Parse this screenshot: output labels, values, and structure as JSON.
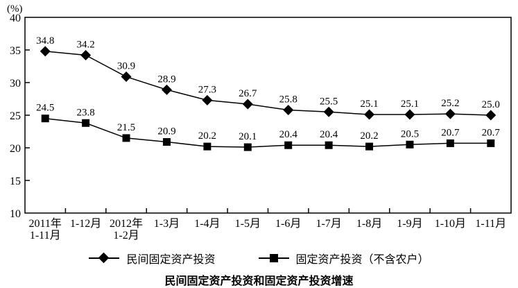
{
  "chart_data": {
    "type": "line",
    "title": "民间固定资产投资和固定资产投资增速",
    "y_unit_label": "(%)",
    "ylim": [
      10,
      40
    ],
    "y_ticks": [
      10,
      15,
      20,
      25,
      30,
      35,
      40
    ],
    "grid": false,
    "data_labels": true,
    "legend_position": "bottom",
    "categories": [
      [
        "2011年",
        "1-11月"
      ],
      [
        "1-12月"
      ],
      [
        "2012年",
        "1-2月"
      ],
      [
        "1-3月"
      ],
      [
        "1-4月"
      ],
      [
        "1-5月"
      ],
      [
        "1-6月"
      ],
      [
        "1-7月"
      ],
      [
        "1-8月"
      ],
      [
        "1-9月"
      ],
      [
        "1-10月"
      ],
      [
        "1-11月"
      ]
    ],
    "series": [
      {
        "name": "民间固定资产投资",
        "marker": "diamond",
        "values": [
          34.8,
          34.2,
          30.9,
          28.9,
          27.3,
          26.7,
          25.8,
          25.5,
          25.1,
          25.1,
          25.2,
          25.0
        ]
      },
      {
        "name": "固定资产投资（不含农户）",
        "marker": "square",
        "values": [
          24.5,
          23.8,
          21.5,
          20.9,
          20.2,
          20.1,
          20.4,
          20.4,
          20.2,
          20.5,
          20.7,
          20.7
        ]
      }
    ],
    "colors": {
      "line": "#000000",
      "marker": "#000000",
      "text": "#000000",
      "background": "#ffffff"
    }
  }
}
